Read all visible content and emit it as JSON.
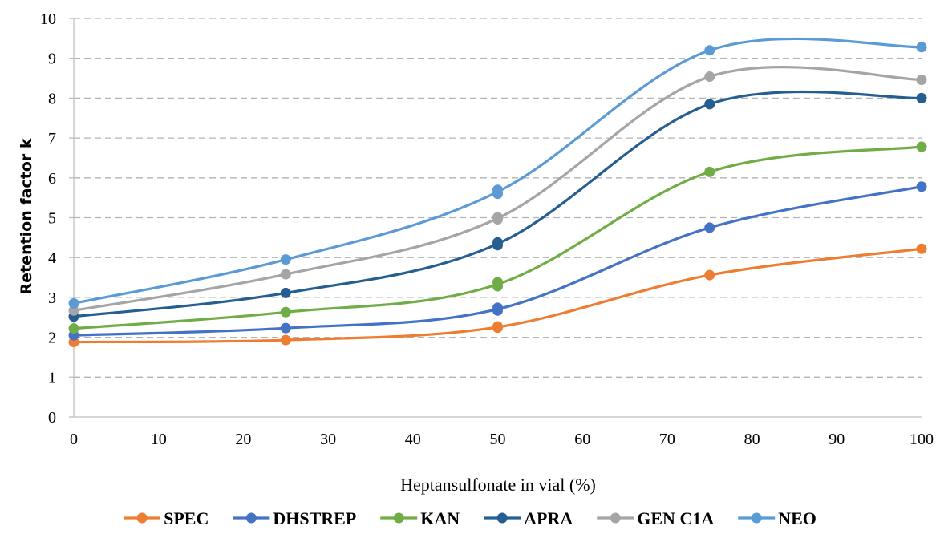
{
  "chart_data": {
    "type": "line",
    "xlabel": "Heptansulfonate in vial (%)",
    "ylabel": "Retention factor k",
    "xlim": [
      0,
      100
    ],
    "ylim": [
      0,
      10
    ],
    "xticks": [
      0,
      10,
      20,
      30,
      40,
      50,
      60,
      70,
      80,
      90,
      100
    ],
    "yticks": [
      0,
      1,
      2,
      3,
      4,
      5,
      6,
      7,
      8,
      9,
      10
    ],
    "grid": "horizontal dashed",
    "legend_position": "bottom",
    "smooth": true,
    "series": [
      {
        "name": "SPEC",
        "color": "#ED7D31",
        "points": [
          [
            0,
            1.88
          ],
          [
            25,
            1.93
          ],
          [
            50,
            2.24
          ],
          [
            50,
            2.27
          ],
          [
            75,
            3.56
          ],
          [
            100,
            4.22
          ]
        ]
      },
      {
        "name": "DHSTREP",
        "color": "#4472C4",
        "points": [
          [
            0,
            2.05
          ],
          [
            25,
            2.23
          ],
          [
            50,
            2.67
          ],
          [
            50,
            2.74
          ],
          [
            75,
            4.75
          ],
          [
            100,
            5.78
          ]
        ]
      },
      {
        "name": "KAN",
        "color": "#70AD47",
        "points": [
          [
            0,
            2.22
          ],
          [
            25,
            2.63
          ],
          [
            50,
            3.28
          ],
          [
            50,
            3.38
          ],
          [
            75,
            6.15
          ],
          [
            100,
            6.78
          ]
        ]
      },
      {
        "name": "APRA",
        "color": "#255E91",
        "points": [
          [
            0,
            2.52
          ],
          [
            25,
            3.11
          ],
          [
            50,
            4.31
          ],
          [
            50,
            4.38
          ],
          [
            75,
            7.85
          ],
          [
            100,
            8.0
          ]
        ]
      },
      {
        "name": "GEN C1A",
        "color": "#A5A5A5",
        "points": [
          [
            0,
            2.67
          ],
          [
            25,
            3.58
          ],
          [
            50,
            4.96
          ],
          [
            50,
            5.01
          ],
          [
            75,
            8.54
          ],
          [
            100,
            8.46
          ]
        ]
      },
      {
        "name": "NEO",
        "color": "#5B9BD5",
        "points": [
          [
            0,
            2.85
          ],
          [
            25,
            3.95
          ],
          [
            50,
            5.6
          ],
          [
            50,
            5.7
          ],
          [
            75,
            9.2
          ],
          [
            100,
            9.28
          ]
        ]
      }
    ]
  }
}
